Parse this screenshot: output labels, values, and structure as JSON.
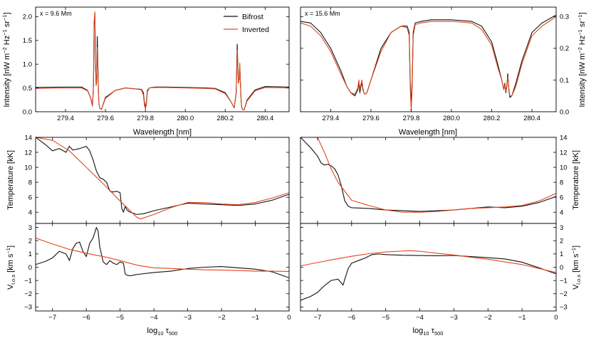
{
  "colors": {
    "bifrost": "#111111",
    "inverted": "#e2461f",
    "frame": "#000000"
  },
  "legend": {
    "bifrost": "Bifrost",
    "inverted": "Inverted"
  },
  "labels": {
    "wavelength": "Wavelength [nm]",
    "intensity_left": "Intensity [nW m",
    "intensity_unit_sup1": "−2",
    "intensity_unit_mid": " Hz",
    "intensity_unit_sup2": "−1",
    "intensity_unit_mid2": " sr",
    "intensity_unit_sup3": "−1",
    "intensity_unit_end": "]",
    "temperature": "Temperature [kK]",
    "velocity_main": "V",
    "velocity_sub": "l.o.s",
    "velocity_unit": " [km s",
    "velocity_unit_sup": "−1",
    "velocity_unit_end": "]",
    "logtau_main": "log",
    "logtau_sub1": "10",
    "logtau_tau": " τ",
    "logtau_sub2": "500",
    "annot_left": "x = 9.6 Mm",
    "annot_right": "x = 15.6 Mm"
  },
  "chart_data": [
    {
      "id": "spectrum-left",
      "type": "line",
      "title": "x = 9.6 Mm",
      "xlabel": "Wavelength [nm]",
      "ylabel": "Intensity [nW m−2 Hz−1 sr−1]",
      "xlim": [
        279.25,
        280.52
      ],
      "ylim": [
        0.0,
        2.2
      ],
      "xticks": [
        279.4,
        279.6,
        279.8,
        280.0,
        280.2,
        280.4
      ],
      "yticks": [
        0.0,
        0.5,
        1.0,
        1.5,
        2.0
      ],
      "series": [
        {
          "name": "Bifrost",
          "x": [
            279.25,
            279.4,
            279.48,
            279.51,
            279.525,
            279.535,
            279.54,
            279.543,
            279.547,
            279.55,
            279.553,
            279.556,
            279.559,
            279.562,
            279.565,
            279.568,
            279.572,
            279.58,
            279.6,
            279.65,
            279.7,
            279.75,
            279.78,
            279.79,
            279.795,
            279.8,
            279.805,
            279.81,
            279.82,
            279.85,
            279.9,
            280.0,
            280.1,
            280.15,
            280.2,
            280.23,
            280.245,
            280.255,
            280.26,
            280.263,
            280.266,
            280.27,
            280.273,
            280.276,
            280.279,
            280.282,
            280.286,
            280.295,
            280.31,
            280.35,
            280.4,
            280.52
          ],
          "y": [
            0.51,
            0.52,
            0.52,
            0.45,
            0.3,
            0.12,
            0.55,
            1.8,
            2.06,
            1.0,
            0.6,
            0.7,
            1.58,
            1.0,
            0.4,
            0.15,
            0.07,
            0.05,
            0.3,
            0.45,
            0.5,
            0.48,
            0.47,
            0.4,
            0.2,
            0.08,
            0.2,
            0.45,
            0.5,
            0.52,
            0.52,
            0.51,
            0.5,
            0.49,
            0.4,
            0.2,
            0.08,
            0.4,
            1.42,
            1.0,
            0.6,
            0.7,
            0.97,
            0.6,
            0.3,
            0.1,
            0.05,
            0.04,
            0.25,
            0.46,
            0.53,
            0.52
          ]
        },
        {
          "name": "Inverted",
          "x": [
            279.25,
            279.4,
            279.48,
            279.51,
            279.525,
            279.535,
            279.54,
            279.543,
            279.547,
            279.55,
            279.553,
            279.556,
            279.559,
            279.562,
            279.565,
            279.568,
            279.572,
            279.58,
            279.6,
            279.65,
            279.7,
            279.75,
            279.78,
            279.79,
            279.795,
            279.8,
            279.805,
            279.81,
            279.82,
            279.85,
            279.9,
            280.0,
            280.1,
            280.15,
            280.2,
            280.23,
            280.245,
            280.255,
            280.26,
            280.263,
            280.266,
            280.27,
            280.273,
            280.276,
            280.279,
            280.282,
            280.286,
            280.295,
            280.31,
            280.35,
            280.4,
            280.52
          ],
          "y": [
            0.49,
            0.5,
            0.5,
            0.44,
            0.3,
            0.12,
            0.6,
            1.9,
            2.1,
            1.0,
            0.55,
            0.6,
            1.35,
            0.9,
            0.4,
            0.15,
            0.07,
            0.05,
            0.28,
            0.45,
            0.5,
            0.48,
            0.46,
            0.35,
            0.15,
            0.06,
            0.15,
            0.42,
            0.5,
            0.51,
            0.51,
            0.5,
            0.49,
            0.48,
            0.38,
            0.2,
            0.08,
            0.4,
            1.3,
            0.9,
            0.6,
            0.7,
            1.02,
            0.6,
            0.3,
            0.1,
            0.05,
            0.04,
            0.23,
            0.44,
            0.51,
            0.5
          ]
        }
      ]
    },
    {
      "id": "spectrum-right",
      "type": "line",
      "title": "x = 15.6 Mm",
      "xlabel": "Wavelength [nm]",
      "ylabel": "Intensity [nW m−2 Hz−1 sr−1]",
      "xlim": [
        279.25,
        280.52
      ],
      "ylim": [
        0.0,
        0.33
      ],
      "xticks": [
        279.4,
        279.6,
        279.8,
        280.0,
        280.2,
        280.4
      ],
      "yticks": [
        0.0,
        0.1,
        0.2,
        0.3
      ],
      "series": [
        {
          "name": "Bifrost",
          "x": [
            279.25,
            279.3,
            279.35,
            279.4,
            279.45,
            279.48,
            279.5,
            279.52,
            279.535,
            279.54,
            279.545,
            279.55,
            279.555,
            279.56,
            279.565,
            279.57,
            279.58,
            279.6,
            279.65,
            279.7,
            279.75,
            279.78,
            279.79,
            279.795,
            279.8,
            279.805,
            279.81,
            279.82,
            279.85,
            279.9,
            280.0,
            280.1,
            280.15,
            280.2,
            280.23,
            280.25,
            280.26,
            280.265,
            280.27,
            280.275,
            280.28,
            280.285,
            280.29,
            280.3,
            280.32,
            280.35,
            280.4,
            280.45,
            280.52
          ],
          "y": [
            0.285,
            0.28,
            0.25,
            0.2,
            0.13,
            0.08,
            0.06,
            0.05,
            0.07,
            0.09,
            0.06,
            0.08,
            0.09,
            0.07,
            0.06,
            0.055,
            0.06,
            0.1,
            0.2,
            0.25,
            0.27,
            0.27,
            0.25,
            0.1,
            0.02,
            0.1,
            0.25,
            0.28,
            0.285,
            0.29,
            0.29,
            0.285,
            0.27,
            0.22,
            0.15,
            0.1,
            0.07,
            0.09,
            0.06,
            0.08,
            0.12,
            0.07,
            0.045,
            0.05,
            0.09,
            0.16,
            0.25,
            0.28,
            0.305
          ]
        },
        {
          "name": "Inverted",
          "x": [
            279.25,
            279.3,
            279.35,
            279.4,
            279.45,
            279.48,
            279.5,
            279.52,
            279.535,
            279.54,
            279.545,
            279.55,
            279.555,
            279.56,
            279.565,
            279.57,
            279.58,
            279.6,
            279.65,
            279.7,
            279.75,
            279.78,
            279.79,
            279.795,
            279.8,
            279.805,
            279.81,
            279.82,
            279.85,
            279.9,
            280.0,
            280.1,
            280.15,
            280.2,
            280.23,
            280.25,
            280.26,
            280.265,
            280.27,
            280.275,
            280.28,
            280.285,
            280.29,
            280.3,
            280.32,
            280.35,
            280.4,
            280.45,
            280.52
          ],
          "y": [
            0.28,
            0.27,
            0.24,
            0.19,
            0.12,
            0.08,
            0.06,
            0.055,
            0.075,
            0.1,
            0.07,
            0.085,
            0.1,
            0.075,
            0.06,
            0.055,
            0.06,
            0.1,
            0.19,
            0.25,
            0.27,
            0.265,
            0.24,
            0.08,
            0.0,
            0.08,
            0.24,
            0.275,
            0.28,
            0.285,
            0.285,
            0.28,
            0.26,
            0.21,
            0.14,
            0.1,
            0.07,
            0.085,
            0.065,
            0.085,
            0.11,
            0.075,
            0.05,
            0.05,
            0.08,
            0.15,
            0.24,
            0.27,
            0.3
          ]
        }
      ]
    },
    {
      "id": "temperature-left",
      "type": "line",
      "ylabel": "Temperature [kK]",
      "xlim": [
        -7.5,
        0.0
      ],
      "ylim": [
        2.5,
        14.0
      ],
      "yticks": [
        4,
        6,
        8,
        10,
        12,
        14
      ],
      "series": [
        {
          "name": "Bifrost",
          "x": [
            -7.5,
            -7.2,
            -7.0,
            -6.8,
            -6.6,
            -6.5,
            -6.4,
            -6.2,
            -6.0,
            -5.9,
            -5.8,
            -5.7,
            -5.6,
            -5.5,
            -5.4,
            -5.3,
            -5.2,
            -5.1,
            -5.0,
            -4.95,
            -4.9,
            -4.85,
            -4.8,
            -4.7,
            -4.5,
            -4.3,
            -4.0,
            -3.5,
            -3.0,
            -2.5,
            -2.0,
            -1.5,
            -1.0,
            -0.5,
            0.0
          ],
          "y": [
            14.0,
            13.0,
            12.2,
            12.5,
            12.0,
            12.8,
            12.3,
            12.5,
            12.8,
            12.2,
            11.0,
            9.5,
            8.6,
            8.4,
            8.0,
            6.8,
            6.7,
            6.8,
            6.6,
            4.5,
            4.0,
            4.8,
            4.3,
            4.0,
            3.7,
            3.8,
            4.2,
            4.7,
            5.2,
            5.1,
            5.0,
            4.9,
            5.1,
            5.6,
            6.4
          ]
        },
        {
          "name": "Inverted",
          "x": [
            -7.5,
            -7.0,
            -6.5,
            -6.0,
            -5.5,
            -5.0,
            -4.5,
            -4.4,
            -4.0,
            -3.5,
            -3.0,
            -2.5,
            -2.0,
            -1.5,
            -1.0,
            -0.5,
            0.0
          ],
          "y": [
            14.0,
            13.6,
            12.2,
            10.0,
            7.8,
            5.5,
            3.3,
            3.1,
            3.7,
            4.6,
            5.3,
            5.3,
            5.1,
            5.0,
            5.3,
            5.9,
            6.6
          ]
        }
      ]
    },
    {
      "id": "temperature-right",
      "type": "line",
      "ylabel": "Temperature [kK]",
      "xlim": [
        -7.5,
        0.0
      ],
      "ylim": [
        2.5,
        14.0
      ],
      "yticks": [
        4,
        6,
        8,
        10,
        12,
        14
      ],
      "series": [
        {
          "name": "Bifrost",
          "x": [
            -7.5,
            -7.2,
            -7.0,
            -6.9,
            -6.8,
            -6.7,
            -6.6,
            -6.5,
            -6.4,
            -6.3,
            -6.2,
            -6.1,
            -6.0,
            -5.5,
            -5.0,
            -4.5,
            -4.0,
            -3.5,
            -3.0,
            -2.5,
            -2.0,
            -1.5,
            -1.0,
            -0.5,
            0.0
          ],
          "y": [
            14.0,
            12.6,
            11.5,
            10.6,
            10.3,
            10.4,
            10.2,
            9.8,
            9.0,
            7.5,
            5.5,
            4.8,
            4.6,
            4.5,
            4.3,
            4.2,
            4.1,
            4.2,
            4.3,
            4.5,
            4.7,
            4.6,
            4.8,
            5.3,
            6.1
          ]
        },
        {
          "name": "Inverted",
          "x": [
            -7.0,
            -6.8,
            -6.6,
            -6.4,
            -6.2,
            -6.0,
            -5.5,
            -5.0,
            -4.5,
            -4.0,
            -3.5,
            -3.0,
            -2.5,
            -2.0,
            -1.5,
            -1.0,
            -0.5,
            0.0
          ],
          "y": [
            14.0,
            12.0,
            9.8,
            8.0,
            6.8,
            5.6,
            4.9,
            4.3,
            4.0,
            4.0,
            4.1,
            4.3,
            4.5,
            4.6,
            4.7,
            4.9,
            5.5,
            6.5
          ]
        }
      ]
    },
    {
      "id": "velocity-left",
      "type": "line",
      "xlabel": "log10 τ500",
      "ylabel": "Vl.o.s [km s−1]",
      "xlim": [
        -7.5,
        0.0
      ],
      "ylim": [
        -3.3,
        3.3
      ],
      "xticks": [
        -7,
        -6,
        -5,
        -4,
        -3,
        -2,
        -1,
        0
      ],
      "yticks": [
        -3,
        -2,
        -1,
        0,
        1,
        2,
        3
      ],
      "series": [
        {
          "name": "Bifrost",
          "x": [
            -7.5,
            -7.2,
            -7.0,
            -6.8,
            -6.6,
            -6.5,
            -6.4,
            -6.3,
            -6.2,
            -6.1,
            -6.0,
            -5.9,
            -5.8,
            -5.7,
            -5.65,
            -5.6,
            -5.5,
            -5.4,
            -5.3,
            -5.2,
            -5.1,
            -5.0,
            -4.9,
            -4.85,
            -4.8,
            -4.7,
            -4.6,
            -4.5,
            -4.0,
            -3.5,
            -3.0,
            -2.5,
            -2.0,
            -1.5,
            -1.0,
            -0.5,
            0.0
          ],
          "y": [
            0.2,
            0.45,
            0.7,
            1.2,
            1.0,
            0.5,
            1.4,
            1.8,
            1.9,
            1.2,
            0.8,
            1.8,
            2.2,
            3.0,
            2.7,
            1.5,
            0.4,
            0.2,
            0.5,
            0.3,
            0.2,
            0.4,
            0.3,
            -0.5,
            -0.6,
            -0.65,
            -0.6,
            -0.55,
            -0.4,
            -0.3,
            -0.1,
            0.0,
            0.05,
            -0.05,
            -0.15,
            -0.35,
            -0.8
          ]
        },
        {
          "name": "Inverted",
          "x": [
            -7.5,
            -7.0,
            -6.5,
            -6.0,
            -5.5,
            -5.0,
            -4.5,
            -4.0,
            -3.5,
            -3.0,
            -2.5,
            -2.0,
            -1.5,
            -1.0,
            -0.5,
            0.0
          ],
          "y": [
            2.2,
            1.75,
            1.35,
            1.05,
            0.8,
            0.5,
            0.15,
            -0.05,
            -0.1,
            -0.15,
            -0.2,
            -0.22,
            -0.25,
            -0.3,
            -0.3,
            -0.32
          ]
        }
      ]
    },
    {
      "id": "velocity-right",
      "type": "line",
      "xlabel": "log10 τ500",
      "ylabel": "Vl.o.s [km s−1]",
      "xlim": [
        -7.5,
        0.0
      ],
      "ylim": [
        -3.3,
        3.3
      ],
      "xticks": [
        -7,
        -6,
        -5,
        -4,
        -3,
        -2,
        -1,
        0
      ],
      "yticks": [
        -3,
        -2,
        -1,
        0,
        1,
        2,
        3
      ],
      "series": [
        {
          "name": "Bifrost",
          "x": [
            -7.5,
            -7.2,
            -7.0,
            -6.8,
            -6.6,
            -6.4,
            -6.3,
            -6.25,
            -6.2,
            -6.1,
            -6.0,
            -5.8,
            -5.6,
            -5.4,
            -5.2,
            -5.0,
            -4.5,
            -4.0,
            -3.5,
            -3.0,
            -2.5,
            -2.0,
            -1.5,
            -1.0,
            -0.5,
            0.0
          ],
          "y": [
            -2.5,
            -2.2,
            -1.9,
            -1.4,
            -1.0,
            -0.9,
            -1.2,
            -1.35,
            -0.9,
            -0.1,
            0.3,
            0.5,
            0.7,
            0.95,
            1.0,
            0.95,
            0.9,
            0.88,
            0.86,
            0.88,
            0.8,
            0.72,
            0.62,
            0.38,
            -0.05,
            -0.5
          ]
        },
        {
          "name": "Inverted",
          "x": [
            -7.5,
            -7.0,
            -6.5,
            -6.0,
            -5.5,
            -5.0,
            -4.5,
            -4.3,
            -4.0,
            -3.5,
            -3.0,
            -2.5,
            -2.0,
            -1.5,
            -1.0,
            -0.5,
            0.0
          ],
          "y": [
            0.1,
            0.35,
            0.6,
            0.82,
            1.02,
            1.15,
            1.22,
            1.25,
            1.2,
            1.05,
            0.92,
            0.75,
            0.6,
            0.4,
            0.2,
            -0.1,
            -0.4
          ]
        }
      ]
    }
  ]
}
